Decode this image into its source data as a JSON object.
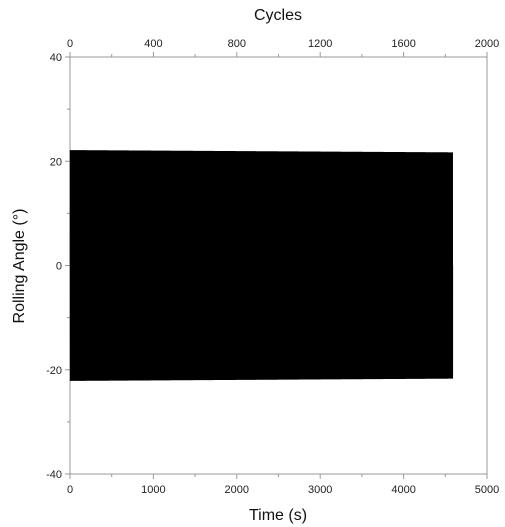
{
  "chart_data": {
    "type": "line",
    "title": "",
    "xlabel": "Time (s)",
    "ylabel": "Rolling Angle (°)",
    "top_xlabel": "Cycles",
    "xlim": [
      0,
      5000
    ],
    "ylim": [
      -40,
      40
    ],
    "top_xlim": [
      0,
      2000
    ],
    "x_ticks": [
      "0",
      "1000",
      "2000",
      "3000",
      "4000",
      "5000"
    ],
    "y_ticks": [
      "-40",
      "-20",
      "0",
      "20",
      "40"
    ],
    "top_ticks": [
      "0",
      "400",
      "800",
      "1200",
      "1600",
      "2000"
    ],
    "grid": false,
    "series": [
      {
        "signal": "periodic oscillation",
        "x_start": 0,
        "x_end": 4590,
        "cycles": 1836,
        "amplitude": 25.5,
        "amplitude_end": 25,
        "mean": 0
      }
    ]
  }
}
